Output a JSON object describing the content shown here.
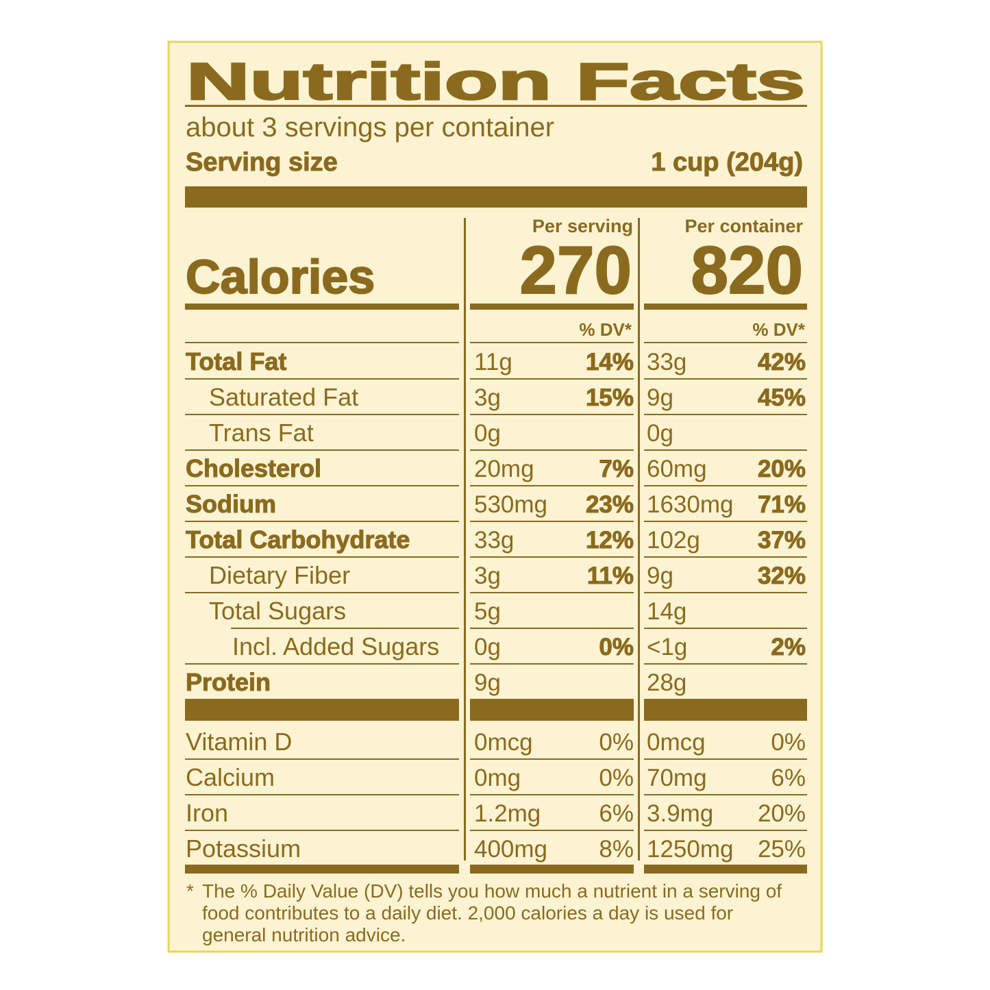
{
  "title": "Nutrition Facts",
  "servings": "about 3 servings per container",
  "serving_size": {
    "label": "Serving size",
    "value": "1 cup (204g)"
  },
  "calories": {
    "label": "Calories",
    "columns": [
      {
        "header": "Per serving",
        "value": "270"
      },
      {
        "header": "Per container",
        "value": "820"
      }
    ]
  },
  "dv_headers": [
    "% DV*",
    "% DV*"
  ],
  "nutrients": [
    {
      "name": "Total Fat",
      "bold": true,
      "indent": 0,
      "serving": [
        "11g",
        "14%"
      ],
      "container": [
        "33g",
        "42%"
      ]
    },
    {
      "name": "Saturated Fat",
      "bold": false,
      "indent": 1,
      "serving": [
        "3g",
        "15%"
      ],
      "container": [
        "9g",
        "45%"
      ]
    },
    {
      "name": "Trans Fat",
      "bold": false,
      "indent": 1,
      "serving": [
        "0g",
        null
      ],
      "container": [
        "0g",
        null
      ]
    },
    {
      "name": "Cholesterol",
      "bold": true,
      "indent": 0,
      "serving": [
        "20mg",
        "7%"
      ],
      "container": [
        "60mg",
        "20%"
      ]
    },
    {
      "name": "Sodium",
      "bold": true,
      "indent": 0,
      "serving": [
        "530mg",
        "23%"
      ],
      "container": [
        "1630mg",
        "71%"
      ]
    },
    {
      "name": "Total Carbohydrate",
      "bold": true,
      "indent": 0,
      "serving": [
        "33g",
        "12%"
      ],
      "container": [
        "102g",
        "37%"
      ]
    },
    {
      "name": "Dietary Fiber",
      "bold": false,
      "indent": 1,
      "serving": [
        "3g",
        "11%"
      ],
      "container": [
        "9g",
        "32%"
      ]
    },
    {
      "name": "Total Sugars",
      "bold": false,
      "indent": 1,
      "serving": [
        "5g",
        null
      ],
      "container": [
        "14g",
        null
      ]
    },
    {
      "name": "Incl. Added Sugars",
      "bold": false,
      "indent": 2,
      "serving": [
        "0g",
        "0%"
      ],
      "container": [
        "<1g",
        "2%"
      ]
    },
    {
      "name": "Protein",
      "bold": true,
      "indent": 0,
      "serving": [
        "9g",
        null
      ],
      "container": [
        "28g",
        null
      ]
    }
  ],
  "vitamins": [
    {
      "name": "Vitamin D",
      "serving": [
        "0mcg",
        "0%"
      ],
      "container": [
        "0mcg",
        "0%"
      ]
    },
    {
      "name": "Calcium",
      "serving": [
        "0mg",
        "0%"
      ],
      "container": [
        "70mg",
        "6%"
      ]
    },
    {
      "name": "Iron",
      "serving": [
        "1.2mg",
        "6%"
      ],
      "container": [
        "3.9mg",
        "20%"
      ]
    },
    {
      "name": "Potassium",
      "serving": [
        "400mg",
        "8%"
      ],
      "container": [
        "1250mg",
        "25%"
      ]
    }
  ],
  "footnote_mark": "*",
  "footnote_lines": [
    "The % Daily Value (DV) tells you how much a nutrient in a serving of",
    "food contributes to a daily diet. 2,000 calories a day is used for",
    "general nutrition advice."
  ]
}
